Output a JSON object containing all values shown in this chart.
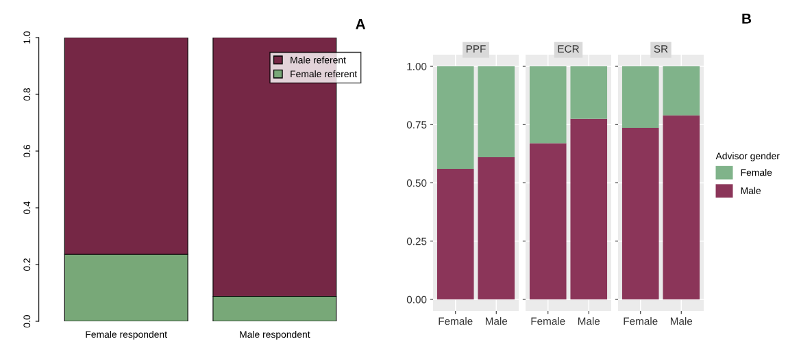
{
  "chart_data": [
    {
      "type": "bar",
      "stacked": true,
      "title": "A",
      "categories": [
        "Female respondent",
        "Male respondent"
      ],
      "series": [
        {
          "name": "Female referent",
          "color": "#78a878",
          "values": [
            0.236,
            0.088
          ]
        },
        {
          "name": "Male referent",
          "color": "#752745",
          "values": [
            0.764,
            0.912
          ]
        }
      ],
      "ylim": [
        0,
        1
      ],
      "yticks": [
        {
          "value": 0,
          "label": "0.0"
        },
        {
          "value": 0.2,
          "label": "0.2"
        },
        {
          "value": 0.4,
          "label": "0.4"
        },
        {
          "value": 0.6,
          "label": "0.6"
        },
        {
          "value": 0.8,
          "label": "0.8"
        },
        {
          "value": 1,
          "label": "1.0"
        }
      ],
      "legend": "top right",
      "grid": false
    },
    {
      "type": "bar",
      "stacked": true,
      "title": "PPF",
      "categories": [
        "Female",
        "Male"
      ],
      "series": [
        {
          "color": "#8b3559",
          "values": [
            0.56,
            0.61
          ]
        },
        {
          "color": "#80b38a",
          "values": [
            0.44,
            0.39
          ]
        }
      ],
      "ylim": [
        -0.05,
        1.05
      ],
      "yticks": [
        {
          "value": 0,
          "label": "0.00"
        },
        {
          "value": 0.25,
          "label": "0.25"
        },
        {
          "value": 0.5,
          "label": "0.50"
        },
        {
          "value": 0.75,
          "label": "0.75"
        },
        {
          "value": 1,
          "label": "1.00"
        }
      ],
      "grid": true
    },
    {
      "type": "bar",
      "stacked": true,
      "title": "ECR",
      "categories": [
        "Female",
        "Male"
      ],
      "series": [
        {
          "color": "#8b3559",
          "values": [
            0.67,
            0.775
          ]
        },
        {
          "color": "#80b38a",
          "values": [
            0.33,
            0.225
          ]
        }
      ],
      "ylim": [
        -0.05,
        1.05
      ],
      "yticks": [
        0,
        0.25,
        0.5,
        0.75,
        1
      ],
      "tick_labels": "x",
      "grid": true
    },
    {
      "type": "bar",
      "stacked": true,
      "title": "SR",
      "categories": [
        "Female",
        "Male"
      ],
      "series": [
        {
          "name": "Male",
          "color": "#8b3559",
          "values": [
            0.736,
            0.79
          ]
        },
        {
          "name": "Female",
          "color": "#80b38a",
          "values": [
            0.264,
            0.21
          ]
        }
      ],
      "ylim": [
        -0.05,
        1.05
      ],
      "yticks": [
        0,
        0.25,
        0.5,
        0.75,
        1
      ],
      "tick_labels": "x",
      "grid": true,
      "legend": "right",
      "legend_title": "Advisor gender",
      "annotations": [
        "B"
      ]
    }
  ]
}
